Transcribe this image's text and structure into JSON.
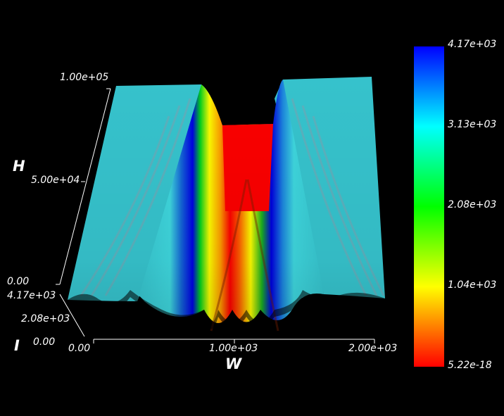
{
  "window": {
    "background": "#000000"
  },
  "plot": {
    "type": "3d-surface",
    "colormap": "rainbow",
    "axes": {
      "x": {
        "title": "W",
        "ticks": [
          "0.00",
          "1.00e+03",
          "2.00e+03"
        ],
        "range": [
          0,
          2000
        ]
      },
      "y": {
        "title": "H",
        "ticks": [
          "0.00",
          "5.00e+04",
          "1.00e+05"
        ],
        "range": [
          0,
          100000
        ]
      },
      "z": {
        "title": "I",
        "ticks": [
          "0.00",
          "2.08e+03",
          "4.17e+03"
        ],
        "range": [
          0,
          4170
        ]
      }
    },
    "colorbar": {
      "labels": [
        "4.17e+03",
        "3.13e+03",
        "2.08e+03",
        "1.04e+03",
        "5.22e-18"
      ],
      "min": 5.22e-18,
      "max": 4170,
      "colors": [
        "#ff0000",
        "#ffff00",
        "#00ff00",
        "#00ffff",
        "#0000ff"
      ]
    }
  }
}
